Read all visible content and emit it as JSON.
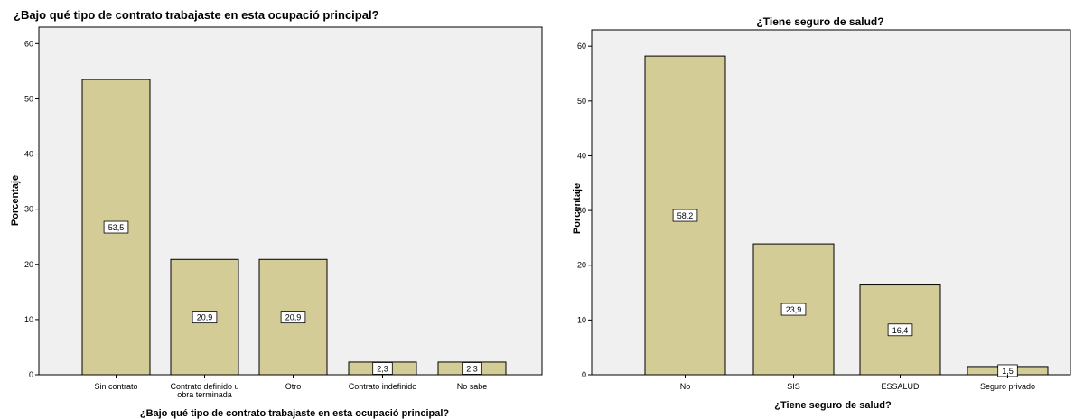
{
  "chart_data": [
    {
      "type": "bar",
      "title": "¿Bajo qué tipo de contrato trabajaste en esta ocupació principal?",
      "xlabel": "¿Bajo qué tipo de contrato trabajaste en esta ocupació principal?",
      "ylabel": "Porcentaje",
      "categories": [
        [
          "Sin contrato"
        ],
        [
          "Contrato definido u",
          "obra terminada"
        ],
        [
          "Otro"
        ],
        [
          "Contrato indefinido"
        ],
        [
          "No sabe"
        ]
      ],
      "values": [
        53.5,
        20.9,
        20.9,
        2.3,
        2.3
      ],
      "data_labels": [
        "53,5",
        "20,9",
        "20,9",
        "2,3",
        "2,3"
      ],
      "ylim": [
        0,
        63
      ],
      "yticks": [
        0,
        10,
        20,
        30,
        40,
        50,
        60
      ],
      "grid": false,
      "bar_color": "#d4cc96"
    },
    {
      "type": "bar",
      "title": "¿Tiene seguro de salud?",
      "xlabel": "¿Tiene seguro de salud?",
      "ylabel": "Porcentaje",
      "categories": [
        [
          "No"
        ],
        [
          "SIS"
        ],
        [
          "ESSALUD"
        ],
        [
          "Seguro privado"
        ]
      ],
      "values": [
        58.2,
        23.9,
        16.4,
        1.5
      ],
      "data_labels": [
        "58,2",
        "23,9",
        "16,4",
        "1,5"
      ],
      "ylim": [
        0,
        63
      ],
      "yticks": [
        0,
        10,
        20,
        30,
        40,
        50,
        60
      ],
      "grid": false,
      "bar_color": "#d4cc96"
    }
  ],
  "colors": {
    "panel_bg": "#f0f0f0",
    "bar_fill": "#d4cc96",
    "bar_stroke": "#000000"
  }
}
